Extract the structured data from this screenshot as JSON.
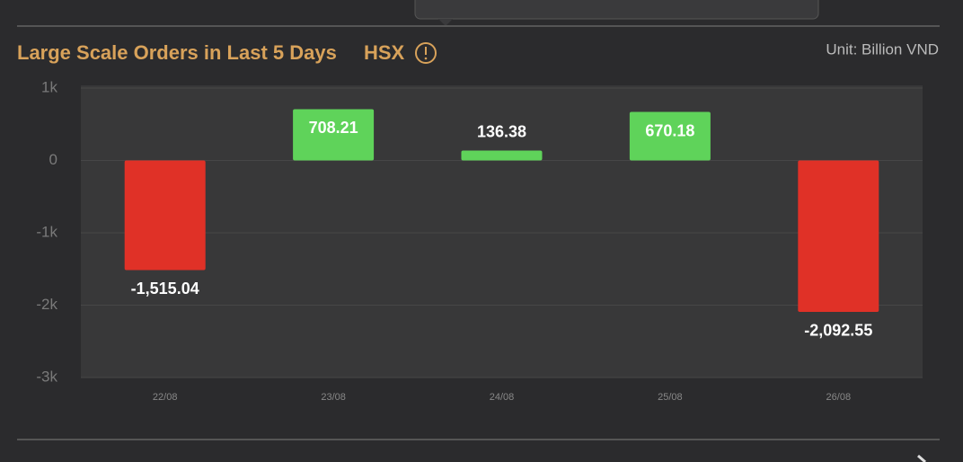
{
  "header": {
    "title": "Large Scale Orders in Last 5 Days",
    "exchange": "HSX",
    "unit": "Unit: Billion VND"
  },
  "chart_data": {
    "type": "bar",
    "categories": [
      "22/08",
      "23/08",
      "24/08",
      "25/08",
      "26/08"
    ],
    "values": [
      -1515.04,
      708.21,
      136.38,
      670.18,
      -2092.55
    ],
    "value_labels": [
      "-1,515.04",
      "708.21",
      "136.38",
      "670.18",
      "-2,092.55"
    ],
    "positive_color": "#5fd35a",
    "negative_color": "#e03127",
    "ylim": [
      -3000,
      1000
    ],
    "yticks": [
      {
        "value": 1000,
        "label": "1k"
      },
      0,
      {
        "value": -1000,
        "label": "-1k"
      },
      {
        "value": -2000,
        "label": "-2k"
      },
      {
        "value": -3000,
        "label": "-3k"
      }
    ],
    "grid": true
  }
}
